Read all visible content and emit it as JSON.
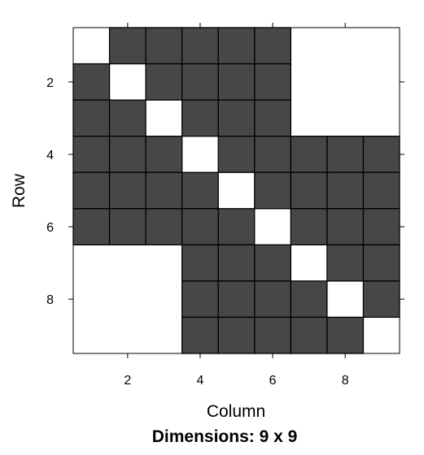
{
  "chart_data": {
    "type": "heatmap",
    "nrow": 9,
    "ncol": 9,
    "xlabel": "Column",
    "ylabel": "Row",
    "subtitle": "Dimensions: 9 x 9",
    "x_ticks": [
      "2",
      "4",
      "6",
      "8"
    ],
    "y_ticks": [
      "2",
      "4",
      "6",
      "8"
    ],
    "colors": {
      "filled": "#474747",
      "border": "#000000",
      "empty": "#ffffff"
    },
    "matrix": [
      [
        0,
        1,
        1,
        1,
        1,
        1,
        0,
        0,
        0
      ],
      [
        1,
        0,
        1,
        1,
        1,
        1,
        0,
        0,
        0
      ],
      [
        1,
        1,
        0,
        1,
        1,
        1,
        0,
        0,
        0
      ],
      [
        1,
        1,
        1,
        0,
        1,
        1,
        1,
        1,
        1
      ],
      [
        1,
        1,
        1,
        1,
        0,
        1,
        1,
        1,
        1
      ],
      [
        1,
        1,
        1,
        1,
        1,
        0,
        1,
        1,
        1
      ],
      [
        0,
        0,
        0,
        1,
        1,
        1,
        0,
        1,
        1
      ],
      [
        0,
        0,
        0,
        1,
        1,
        1,
        1,
        0,
        1
      ],
      [
        0,
        0,
        0,
        1,
        1,
        1,
        1,
        1,
        0
      ]
    ]
  }
}
